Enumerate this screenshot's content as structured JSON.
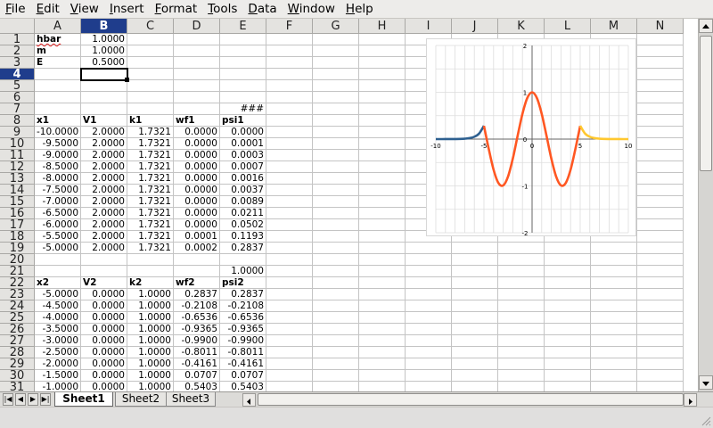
{
  "menu": [
    {
      "label": "File",
      "u": "F",
      "rest": "ile"
    },
    {
      "label": "Edit",
      "u": "E",
      "rest": "dit"
    },
    {
      "label": "View",
      "u": "V",
      "rest": "iew"
    },
    {
      "label": "Insert",
      "u": "I",
      "rest": "nsert"
    },
    {
      "label": "Format",
      "u": "F",
      "rest": "ormat"
    },
    {
      "label": "Tools",
      "u": "T",
      "rest": "ools"
    },
    {
      "label": "Data",
      "u": "D",
      "rest": "ata"
    },
    {
      "label": "Window",
      "u": "W",
      "rest": "indow"
    },
    {
      "label": "Help",
      "u": "H",
      "rest": "elp"
    }
  ],
  "columns": [
    "A",
    "B",
    "C",
    "D",
    "E",
    "F",
    "G",
    "H",
    "I",
    "J",
    "K",
    "L",
    "M",
    "N"
  ],
  "selected_column": "B",
  "selected_row": "4",
  "rows": [
    "1",
    "2",
    "3",
    "4",
    "5",
    "6",
    "7",
    "8",
    "9",
    "10",
    "11",
    "12",
    "13",
    "14",
    "15",
    "16",
    "17",
    "18",
    "19",
    "20",
    "21",
    "22",
    "23",
    "24",
    "25",
    "26",
    "27",
    "28",
    "29",
    "30",
    "31"
  ],
  "cells": {
    "r1": {
      "A": "hbar",
      "B": "1.0000"
    },
    "r2": {
      "A": "m",
      "B": "1.0000"
    },
    "r3": {
      "A": "E",
      "B": "0.5000"
    },
    "r7": {
      "E": "###"
    },
    "r8": {
      "A": "x1",
      "B": "V1",
      "C": "k1",
      "D": "wf1",
      "E": "psi1"
    },
    "r9": {
      "A": "-10.0000",
      "B": "2.0000",
      "C": "1.7321",
      "D": "0.0000",
      "E": "0.0000"
    },
    "r10": {
      "A": "-9.5000",
      "B": "2.0000",
      "C": "1.7321",
      "D": "0.0000",
      "E": "0.0001"
    },
    "r11": {
      "A": "-9.0000",
      "B": "2.0000",
      "C": "1.7321",
      "D": "0.0000",
      "E": "0.0003"
    },
    "r12": {
      "A": "-8.5000",
      "B": "2.0000",
      "C": "1.7321",
      "D": "0.0000",
      "E": "0.0007"
    },
    "r13": {
      "A": "-8.0000",
      "B": "2.0000",
      "C": "1.7321",
      "D": "0.0000",
      "E": "0.0016"
    },
    "r14": {
      "A": "-7.5000",
      "B": "2.0000",
      "C": "1.7321",
      "D": "0.0000",
      "E": "0.0037"
    },
    "r15": {
      "A": "-7.0000",
      "B": "2.0000",
      "C": "1.7321",
      "D": "0.0000",
      "E": "0.0089"
    },
    "r16": {
      "A": "-6.5000",
      "B": "2.0000",
      "C": "1.7321",
      "D": "0.0000",
      "E": "0.0211"
    },
    "r17": {
      "A": "-6.0000",
      "B": "2.0000",
      "C": "1.7321",
      "D": "0.0000",
      "E": "0.0502"
    },
    "r18": {
      "A": "-5.5000",
      "B": "2.0000",
      "C": "1.7321",
      "D": "0.0001",
      "E": "0.1193"
    },
    "r19": {
      "A": "-5.0000",
      "B": "2.0000",
      "C": "1.7321",
      "D": "0.0002",
      "E": "0.2837"
    },
    "r21": {
      "E": "1.0000"
    },
    "r22": {
      "A": "x2",
      "B": "V2",
      "C": "k2",
      "D": "wf2",
      "E": "psi2"
    },
    "r23": {
      "A": "-5.0000",
      "B": "0.0000",
      "C": "1.0000",
      "D": "0.2837",
      "E": "0.2837"
    },
    "r24": {
      "A": "-4.5000",
      "B": "0.0000",
      "C": "1.0000",
      "D": "-0.2108",
      "E": "-0.2108"
    },
    "r25": {
      "A": "-4.0000",
      "B": "0.0000",
      "C": "1.0000",
      "D": "-0.6536",
      "E": "-0.6536"
    },
    "r26": {
      "A": "-3.5000",
      "B": "0.0000",
      "C": "1.0000",
      "D": "-0.9365",
      "E": "-0.9365"
    },
    "r27": {
      "A": "-3.0000",
      "B": "0.0000",
      "C": "1.0000",
      "D": "-0.9900",
      "E": "-0.9900"
    },
    "r28": {
      "A": "-2.5000",
      "B": "0.0000",
      "C": "1.0000",
      "D": "-0.8011",
      "E": "-0.8011"
    },
    "r29": {
      "A": "-2.0000",
      "B": "0.0000",
      "C": "1.0000",
      "D": "-0.4161",
      "E": "-0.4161"
    },
    "r30": {
      "A": "-1.5000",
      "B": "0.0000",
      "C": "1.0000",
      "D": "0.0707",
      "E": "0.0707"
    },
    "r31": {
      "A": "-1.0000",
      "B": "0.0000",
      "C": "1.0000",
      "D": "0.5403",
      "E": "0.5403"
    }
  },
  "chart_data": {
    "type": "line",
    "xlim": [
      -10,
      10
    ],
    "ylim": [
      -2,
      2
    ],
    "x_ticks": [
      "-10",
      "-5",
      "0",
      "5",
      "10"
    ],
    "y_ticks": [
      "2",
      "1",
      "0",
      "-1",
      "-2"
    ],
    "grid": true,
    "series": [
      {
        "color": "#2e6090",
        "x": [
          -10,
          -9.5,
          -9,
          -8.5,
          -8,
          -7.5,
          -7,
          -6.5,
          -6,
          -5.5,
          -5
        ],
        "values": [
          0.0,
          0.0001,
          0.0003,
          0.0007,
          0.0016,
          0.0037,
          0.0089,
          0.0211,
          0.0502,
          0.1193,
          0.2837
        ]
      },
      {
        "color": "#ff5722",
        "x": [
          -5,
          -4.5,
          -4,
          -3.5,
          -3,
          -2.5,
          -2,
          -1.5,
          -1,
          -0.5,
          0,
          0.5,
          1,
          1.5,
          2,
          2.5,
          3,
          3.5,
          4,
          4.5,
          5
        ],
        "values": [
          0.2837,
          -0.2108,
          -0.6536,
          -0.9365,
          -0.99,
          -0.8011,
          -0.4161,
          0.0707,
          0.5403,
          0.8776,
          1.0,
          0.8776,
          0.5403,
          0.0707,
          -0.4161,
          -0.8011,
          -0.99,
          -0.9365,
          -0.6536,
          -0.2108,
          0.2837
        ]
      },
      {
        "color": "#ffc830",
        "x": [
          5,
          5.5,
          6,
          6.5,
          7,
          7.5,
          8,
          8.5,
          9,
          9.5,
          10
        ],
        "values": [
          0.2837,
          0.1193,
          0.0502,
          0.0211,
          0.0089,
          0.0037,
          0.0016,
          0.0007,
          0.0003,
          0.0001,
          0.0
        ]
      }
    ]
  },
  "sheets": [
    "Sheet1",
    "Sheet2",
    "Sheet3"
  ],
  "active_sheet": "Sheet1"
}
